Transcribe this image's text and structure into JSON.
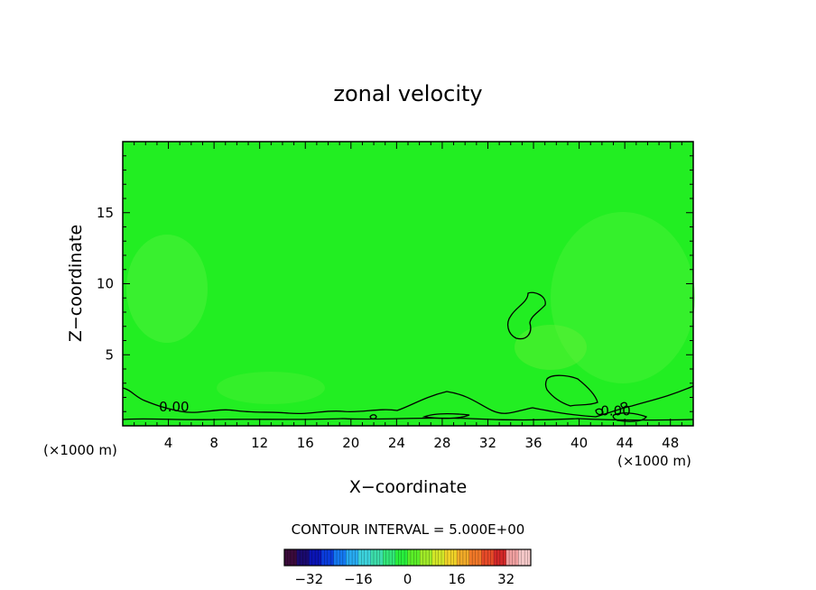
{
  "chart_data": {
    "type": "heatmap",
    "title": "zonal velocity",
    "xlabel": "X−coordinate",
    "ylabel": "Z−coordinate",
    "x_unit_left": "(×1000 m)",
    "x_unit_right": "(×1000 m)",
    "xlim": [
      0,
      50
    ],
    "ylim": [
      0,
      20
    ],
    "x_ticks": [
      4,
      8,
      12,
      16,
      20,
      24,
      28,
      32,
      36,
      40,
      44,
      48
    ],
    "x_tick_labels": [
      "4",
      "8",
      "12",
      "16",
      "20",
      "24",
      "28",
      "32",
      "36",
      "40",
      "44",
      "48"
    ],
    "y_ticks": [
      5,
      10,
      15
    ],
    "y_tick_labels": [
      "5",
      "10",
      "15"
    ],
    "field_color": "#22ee22",
    "contour_labels": [
      {
        "text": "0.00",
        "x": 4.5,
        "z": 1.4
      },
      {
        "text": "0.00",
        "x": 43.2,
        "z": 1.1
      }
    ],
    "contour_interval_text": "CONTOUR INTERVAL =  5.000E+00",
    "colorbar": {
      "min": -40,
      "max": 40,
      "tick_values": [
        -32,
        -16,
        0,
        16,
        32
      ],
      "tick_labels": [
        "−32",
        "−16",
        "0",
        "16",
        "32"
      ],
      "colors": [
        "#3a0a3a",
        "#1a0a6e",
        "#0a14b4",
        "#0a3cdc",
        "#1478f0",
        "#28aaf0",
        "#3cd2dc",
        "#3cdcaa",
        "#32e678",
        "#28ee3c",
        "#5aee28",
        "#a0ea28",
        "#d2e628",
        "#f0d228",
        "#f0aa28",
        "#f07828",
        "#e64a28",
        "#d22828",
        "#f0a0a0",
        "#f5c8c8"
      ]
    }
  }
}
